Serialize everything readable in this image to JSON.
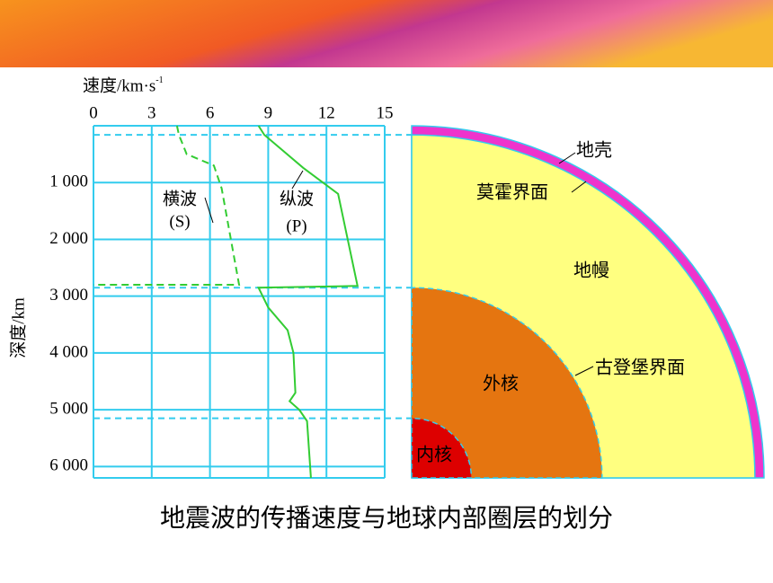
{
  "chart_data": {
    "type": "line",
    "x_label": "速度/km·s",
    "x_label_sup": "-1",
    "y_label": "深度/km",
    "xlim": [
      0,
      15
    ],
    "xticks": [
      0,
      3,
      6,
      9,
      12,
      15
    ],
    "ylim": [
      0,
      6200
    ],
    "yticks": [
      {
        "value": 1000,
        "label": "1 000"
      },
      {
        "value": 2000,
        "label": "2 000"
      },
      {
        "value": 3000,
        "label": "3 000"
      },
      {
        "value": 4000,
        "label": "4 000"
      },
      {
        "value": 5000,
        "label": "5 000"
      },
      {
        "value": 6000,
        "label": "6 000"
      }
    ],
    "grid": true,
    "boundaries": [
      160,
      2850,
      5150
    ],
    "series": [
      {
        "name": "横波",
        "symbol": "(S)",
        "color": "#33cc33",
        "dashed": true,
        "x": [
          4.3,
          4.4,
          4.8,
          6.2,
          6.6,
          7.5,
          0
        ],
        "values": [
          0,
          160,
          500,
          700,
          1100,
          2800,
          2800
        ]
      },
      {
        "name": "纵波",
        "symbol": "(P)",
        "color": "#33cc33",
        "dashed": false,
        "x": [
          8.5,
          8.8,
          10.8,
          12.6,
          13.6,
          8.5,
          9.0,
          10.0,
          10.3,
          10.4,
          10.1,
          10.6,
          11.0,
          11.2
        ],
        "values": [
          0,
          160,
          740,
          1200,
          2820,
          2850,
          3200,
          3600,
          4000,
          4700,
          4850,
          5000,
          5200,
          6200
        ]
      }
    ]
  },
  "diagram": {
    "crust": "地壳",
    "moho": "莫霍界面",
    "mantle": "地幔",
    "gutenberg": "古登堡界面",
    "outer_core": "外核",
    "inner_core": "内核"
  },
  "caption": "地震波的传播速度与地球内部圈层的划分"
}
